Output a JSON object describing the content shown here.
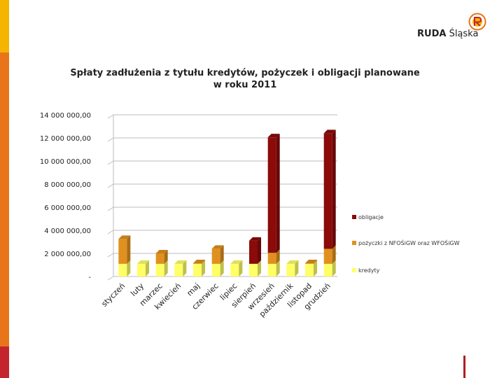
{
  "logo": {
    "bold": "RUDA",
    "rest": "Śląska"
  },
  "colors": {
    "accent_yellow": "#f5b400",
    "accent_orange": "#e8751a",
    "accent_red": "#c4252c"
  },
  "chart_data": {
    "type": "bar",
    "stacked": true,
    "title_line1": "Spłaty zadłużenia z tytułu kredytów, pożyczek i  obligacji planowane",
    "title_line2": "w roku 2011",
    "categories": [
      "styczeń",
      "luty",
      "marzec",
      "kwiecień",
      "maj",
      "czerwiec",
      "lipiec",
      "sierpień",
      "wrzesień",
      "październik",
      "listopad",
      "grudzień"
    ],
    "series": [
      {
        "name": "kredyty",
        "color": "#ffff66",
        "values": [
          1100000,
          1100000,
          1100000,
          1100000,
          1100000,
          1100000,
          1100000,
          1100000,
          1100000,
          1100000,
          1100000,
          1100000
        ]
      },
      {
        "name": "pożyczki z NFOŚiGW oraz WFOŚiGW",
        "color": "#e0901e",
        "values": [
          2150000,
          0,
          900000,
          0,
          50000,
          1300000,
          0,
          0,
          950000,
          0,
          50000,
          1300000
        ]
      },
      {
        "name": "obligacje",
        "color": "#8b0a0a",
        "values": [
          0,
          0,
          0,
          0,
          0,
          0,
          0,
          2000000,
          10000000,
          0,
          0,
          10000000
        ]
      }
    ],
    "ylim": [
      0,
      14000000
    ],
    "yticks": [
      "-",
      "2 000 000,00",
      "4 000 000,00",
      "6 000 000,00",
      "8 000 000,00",
      "10 000 000,00",
      "12 000 000,00",
      "14 000 000,00"
    ],
    "grid": true,
    "legend": "right"
  }
}
